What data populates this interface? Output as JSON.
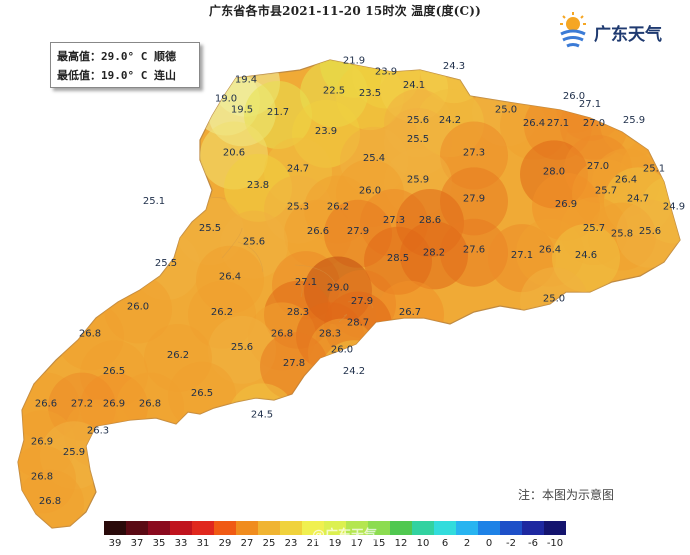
{
  "title": "广东省各市县2021-11-20 15时次 温度(度(C))",
  "info": {
    "max_line": "最高值：29.0° C 顺德",
    "min_line": "最低值：19.0° C 连山"
  },
  "logo_text": "广东天气",
  "note": "注：本图为示意图",
  "watermark": "@广东天气",
  "colors": {
    "outside_map": "#ffffff",
    "coast_line": "#bf8a42"
  },
  "stations": [
    {
      "label": "21.9",
      "lon": 113.45,
      "lat": 25.05,
      "color": "#e4e040"
    },
    {
      "label": "24.3",
      "lon": 114.7,
      "lat": 24.95,
      "color": "#f2d04a"
    },
    {
      "label": "19.4",
      "lon": 112.1,
      "lat": 24.7,
      "color": "#f0f0a0"
    },
    {
      "label": "23.9",
      "lon": 113.85,
      "lat": 24.85,
      "color": "#f0d040"
    },
    {
      "label": "19.0",
      "lon": 111.85,
      "lat": 24.35,
      "color": "#f0f0a0"
    },
    {
      "label": "22.5",
      "lon": 113.2,
      "lat": 24.5,
      "color": "#e8e050"
    },
    {
      "label": "23.5",
      "lon": 113.65,
      "lat": 24.45,
      "color": "#f0d040"
    },
    {
      "label": "24.1",
      "lon": 114.2,
      "lat": 24.6,
      "color": "#f2d04a"
    },
    {
      "label": "26.0",
      "lon": 116.2,
      "lat": 24.4,
      "color": "#f0a030"
    },
    {
      "label": "27.1",
      "lon": 116.4,
      "lat": 24.25,
      "color": "#ec8a28"
    },
    {
      "label": "19.5",
      "lon": 112.05,
      "lat": 24.15,
      "color": "#f0f0a0"
    },
    {
      "label": "21.7",
      "lon": 112.5,
      "lat": 24.1,
      "color": "#e8e050"
    },
    {
      "label": "25.0",
      "lon": 115.35,
      "lat": 24.15,
      "color": "#f0b040"
    },
    {
      "label": "25.6",
      "lon": 114.25,
      "lat": 23.95,
      "color": "#f0b040"
    },
    {
      "label": "24.2",
      "lon": 114.65,
      "lat": 23.95,
      "color": "#f0c040"
    },
    {
      "label": "26.4",
      "lon": 115.7,
      "lat": 23.9,
      "color": "#f0a030"
    },
    {
      "label": "27.1",
      "lon": 116.0,
      "lat": 23.9,
      "color": "#ec8a28"
    },
    {
      "label": "27.0",
      "lon": 116.45,
      "lat": 23.9,
      "color": "#ec8a28"
    },
    {
      "label": "25.9",
      "lon": 116.95,
      "lat": 23.95,
      "color": "#f0a030"
    },
    {
      "label": "23.9",
      "lon": 113.1,
      "lat": 23.75,
      "color": "#f0d040"
    },
    {
      "label": "25.5",
      "lon": 114.25,
      "lat": 23.6,
      "color": "#f0b040"
    },
    {
      "label": "20.6",
      "lon": 111.95,
      "lat": 23.35,
      "color": "#f0e070"
    },
    {
      "label": "27.3",
      "lon": 114.95,
      "lat": 23.35,
      "color": "#ec8a28"
    },
    {
      "label": "25.4",
      "lon": 113.7,
      "lat": 23.25,
      "color": "#f0b040"
    },
    {
      "label": "24.7",
      "lon": 112.75,
      "lat": 23.05,
      "color": "#f0c040"
    },
    {
      "label": "28.0",
      "lon": 115.95,
      "lat": 23.0,
      "color": "#e06818"
    },
    {
      "label": "27.0",
      "lon": 116.5,
      "lat": 23.1,
      "color": "#ec8a28"
    },
    {
      "label": "25.1",
      "lon": 117.2,
      "lat": 23.05,
      "color": "#f0a030"
    },
    {
      "label": "25.9",
      "lon": 114.25,
      "lat": 22.85,
      "color": "#f0b040"
    },
    {
      "label": "23.8",
      "lon": 112.25,
      "lat": 22.75,
      "color": "#f0d040"
    },
    {
      "label": "26.0",
      "lon": 113.65,
      "lat": 22.65,
      "color": "#f0a030"
    },
    {
      "label": "26.4",
      "lon": 116.85,
      "lat": 22.85,
      "color": "#f0a030"
    },
    {
      "label": "25.1",
      "lon": 110.95,
      "lat": 22.45,
      "color": "#f0b040"
    },
    {
      "label": "25.3",
      "lon": 112.75,
      "lat": 22.35,
      "color": "#f0b040"
    },
    {
      "label": "26.2",
      "lon": 113.25,
      "lat": 22.35,
      "color": "#f0a030"
    },
    {
      "label": "27.9",
      "lon": 114.95,
      "lat": 22.5,
      "color": "#e87a20"
    },
    {
      "label": "25.7",
      "lon": 116.6,
      "lat": 22.65,
      "color": "#f0a030"
    },
    {
      "label": "24.7",
      "lon": 117.0,
      "lat": 22.5,
      "color": "#f0c040"
    },
    {
      "label": "26.9",
      "lon": 116.1,
      "lat": 22.4,
      "color": "#f09028"
    },
    {
      "label": "27.3",
      "lon": 113.95,
      "lat": 22.1,
      "color": "#ec8a28"
    },
    {
      "label": "28.6",
      "lon": 114.4,
      "lat": 22.1,
      "color": "#e06818"
    },
    {
      "label": "24.9",
      "lon": 117.45,
      "lat": 22.35,
      "color": "#f0c040"
    },
    {
      "label": "25.5",
      "lon": 111.65,
      "lat": 21.95,
      "color": "#f0b040"
    },
    {
      "label": "26.6",
      "lon": 113.0,
      "lat": 21.9,
      "color": "#f0a030"
    },
    {
      "label": "27.9",
      "lon": 113.5,
      "lat": 21.9,
      "color": "#e87a20"
    },
    {
      "label": "25.7",
      "lon": 116.45,
      "lat": 21.95,
      "color": "#f0a030"
    },
    {
      "label": "25.8",
      "lon": 116.8,
      "lat": 21.85,
      "color": "#f0a030"
    },
    {
      "label": "25.6",
      "lon": 117.15,
      "lat": 21.9,
      "color": "#f0b040"
    },
    {
      "label": "25.6",
      "lon": 112.2,
      "lat": 21.7,
      "color": "#f0b040"
    },
    {
      "label": "27.6",
      "lon": 114.95,
      "lat": 21.55,
      "color": "#e87a20"
    },
    {
      "label": "28.2",
      "lon": 114.45,
      "lat": 21.5,
      "color": "#e06818"
    },
    {
      "label": "27.1",
      "lon": 115.55,
      "lat": 21.45,
      "color": "#ec8a28"
    },
    {
      "label": "26.4",
      "lon": 115.9,
      "lat": 21.55,
      "color": "#f0a030"
    },
    {
      "label": "24.6",
      "lon": 116.35,
      "lat": 21.45,
      "color": "#f0c040"
    },
    {
      "label": "25.5",
      "lon": 111.1,
      "lat": 21.3,
      "color": "#f0b040"
    },
    {
      "label": "28.5",
      "lon": 114.0,
      "lat": 21.4,
      "color": "#e06818"
    },
    {
      "label": "26.4",
      "lon": 111.9,
      "lat": 21.05,
      "color": "#f0a030"
    },
    {
      "label": "27.1",
      "lon": 112.85,
      "lat": 20.95,
      "color": "#ec8a28"
    },
    {
      "label": "29.0",
      "lon": 113.25,
      "lat": 20.85,
      "color": "#c04a10"
    },
    {
      "label": "26.0",
      "lon": 110.75,
      "lat": 20.5,
      "color": "#f0a030"
    },
    {
      "label": "27.9",
      "lon": 113.55,
      "lat": 20.6,
      "color": "#e87a20"
    },
    {
      "label": "25.0",
      "lon": 115.95,
      "lat": 20.65,
      "color": "#f0b040"
    },
    {
      "label": "26.2",
      "lon": 111.8,
      "lat": 20.4,
      "color": "#f0a030"
    },
    {
      "label": "28.3",
      "lon": 112.75,
      "lat": 20.4,
      "color": "#e06818"
    },
    {
      "label": "26.7",
      "lon": 114.15,
      "lat": 20.4,
      "color": "#f09028"
    },
    {
      "label": "28.7",
      "lon": 113.5,
      "lat": 20.2,
      "color": "#e06818"
    },
    {
      "label": "26.8",
      "lon": 110.15,
      "lat": 20.0,
      "color": "#f0a030"
    },
    {
      "label": "26.8",
      "lon": 112.55,
      "lat": 20.0,
      "color": "#f0a030"
    },
    {
      "label": "28.3",
      "lon": 113.15,
      "lat": 20.0,
      "color": "#e06818"
    },
    {
      "label": "25.6",
      "lon": 112.05,
      "lat": 19.75,
      "color": "#f0b040"
    },
    {
      "label": "26.0",
      "lon": 113.3,
      "lat": 19.7,
      "color": "#f0a030"
    },
    {
      "label": "26.2",
      "lon": 111.25,
      "lat": 19.6,
      "color": "#f0a030"
    },
    {
      "label": "27.8",
      "lon": 112.7,
      "lat": 19.45,
      "color": "#e87a20"
    },
    {
      "label": "26.5",
      "lon": 110.45,
      "lat": 19.3,
      "color": "#f0a030"
    },
    {
      "label": "24.2",
      "lon": 113.45,
      "lat": 19.3,
      "color": "#f0c040"
    },
    {
      "label": "26.5",
      "lon": 111.55,
      "lat": 18.9,
      "color": "#f0a030"
    },
    {
      "label": "26.6",
      "lon": 109.6,
      "lat": 18.7,
      "color": "#f0a030"
    },
    {
      "label": "27.2",
      "lon": 110.05,
      "lat": 18.7,
      "color": "#ec8a28"
    },
    {
      "label": "26.9",
      "lon": 110.45,
      "lat": 18.7,
      "color": "#f09028"
    },
    {
      "label": "26.8",
      "lon": 110.9,
      "lat": 18.7,
      "color": "#f0a030"
    },
    {
      "label": "24.5",
      "lon": 112.3,
      "lat": 18.5,
      "color": "#f0c040"
    },
    {
      "label": "26.3",
      "lon": 110.25,
      "lat": 18.2,
      "color": "#f0a030"
    },
    {
      "label": "26.9",
      "lon": 109.55,
      "lat": 18.0,
      "color": "#f0a030"
    },
    {
      "label": "25.9",
      "lon": 109.95,
      "lat": 17.8,
      "color": "#f0b040"
    },
    {
      "label": "26.8",
      "lon": 109.55,
      "lat": 17.35,
      "color": "#f0a030"
    },
    {
      "label": "26.8",
      "lon": 109.65,
      "lat": 16.9,
      "color": "#f0a030"
    }
  ],
  "legend": [
    {
      "label": "39",
      "color": "#2a0a0a"
    },
    {
      "label": "37",
      "color": "#5a0a14"
    },
    {
      "label": "35",
      "color": "#8a0a1e"
    },
    {
      "label": "33",
      "color": "#c0141e"
    },
    {
      "label": "31",
      "color": "#e0281e"
    },
    {
      "label": "29",
      "color": "#f05a14"
    },
    {
      "label": "27",
      "color": "#f08c1e"
    },
    {
      "label": "25",
      "color": "#f0b432"
    },
    {
      "label": "23",
      "color": "#f0d23c"
    },
    {
      "label": "21",
      "color": "#f0f050"
    },
    {
      "label": "19",
      "color": "#dcf050"
    },
    {
      "label": "17",
      "color": "#b4e650"
    },
    {
      "label": "15",
      "color": "#8cdc50"
    },
    {
      "label": "12",
      "color": "#50c850"
    },
    {
      "label": "10",
      "color": "#32d2a0"
    },
    {
      "label": "6",
      "color": "#32dcdc"
    },
    {
      "label": "2",
      "color": "#28b4f0"
    },
    {
      "label": "0",
      "color": "#1e82e6"
    },
    {
      "label": "-2",
      "color": "#1e50c8"
    },
    {
      "label": "-6",
      "color": "#1e28a0"
    },
    {
      "label": "-10",
      "color": "#14146e"
    }
  ]
}
